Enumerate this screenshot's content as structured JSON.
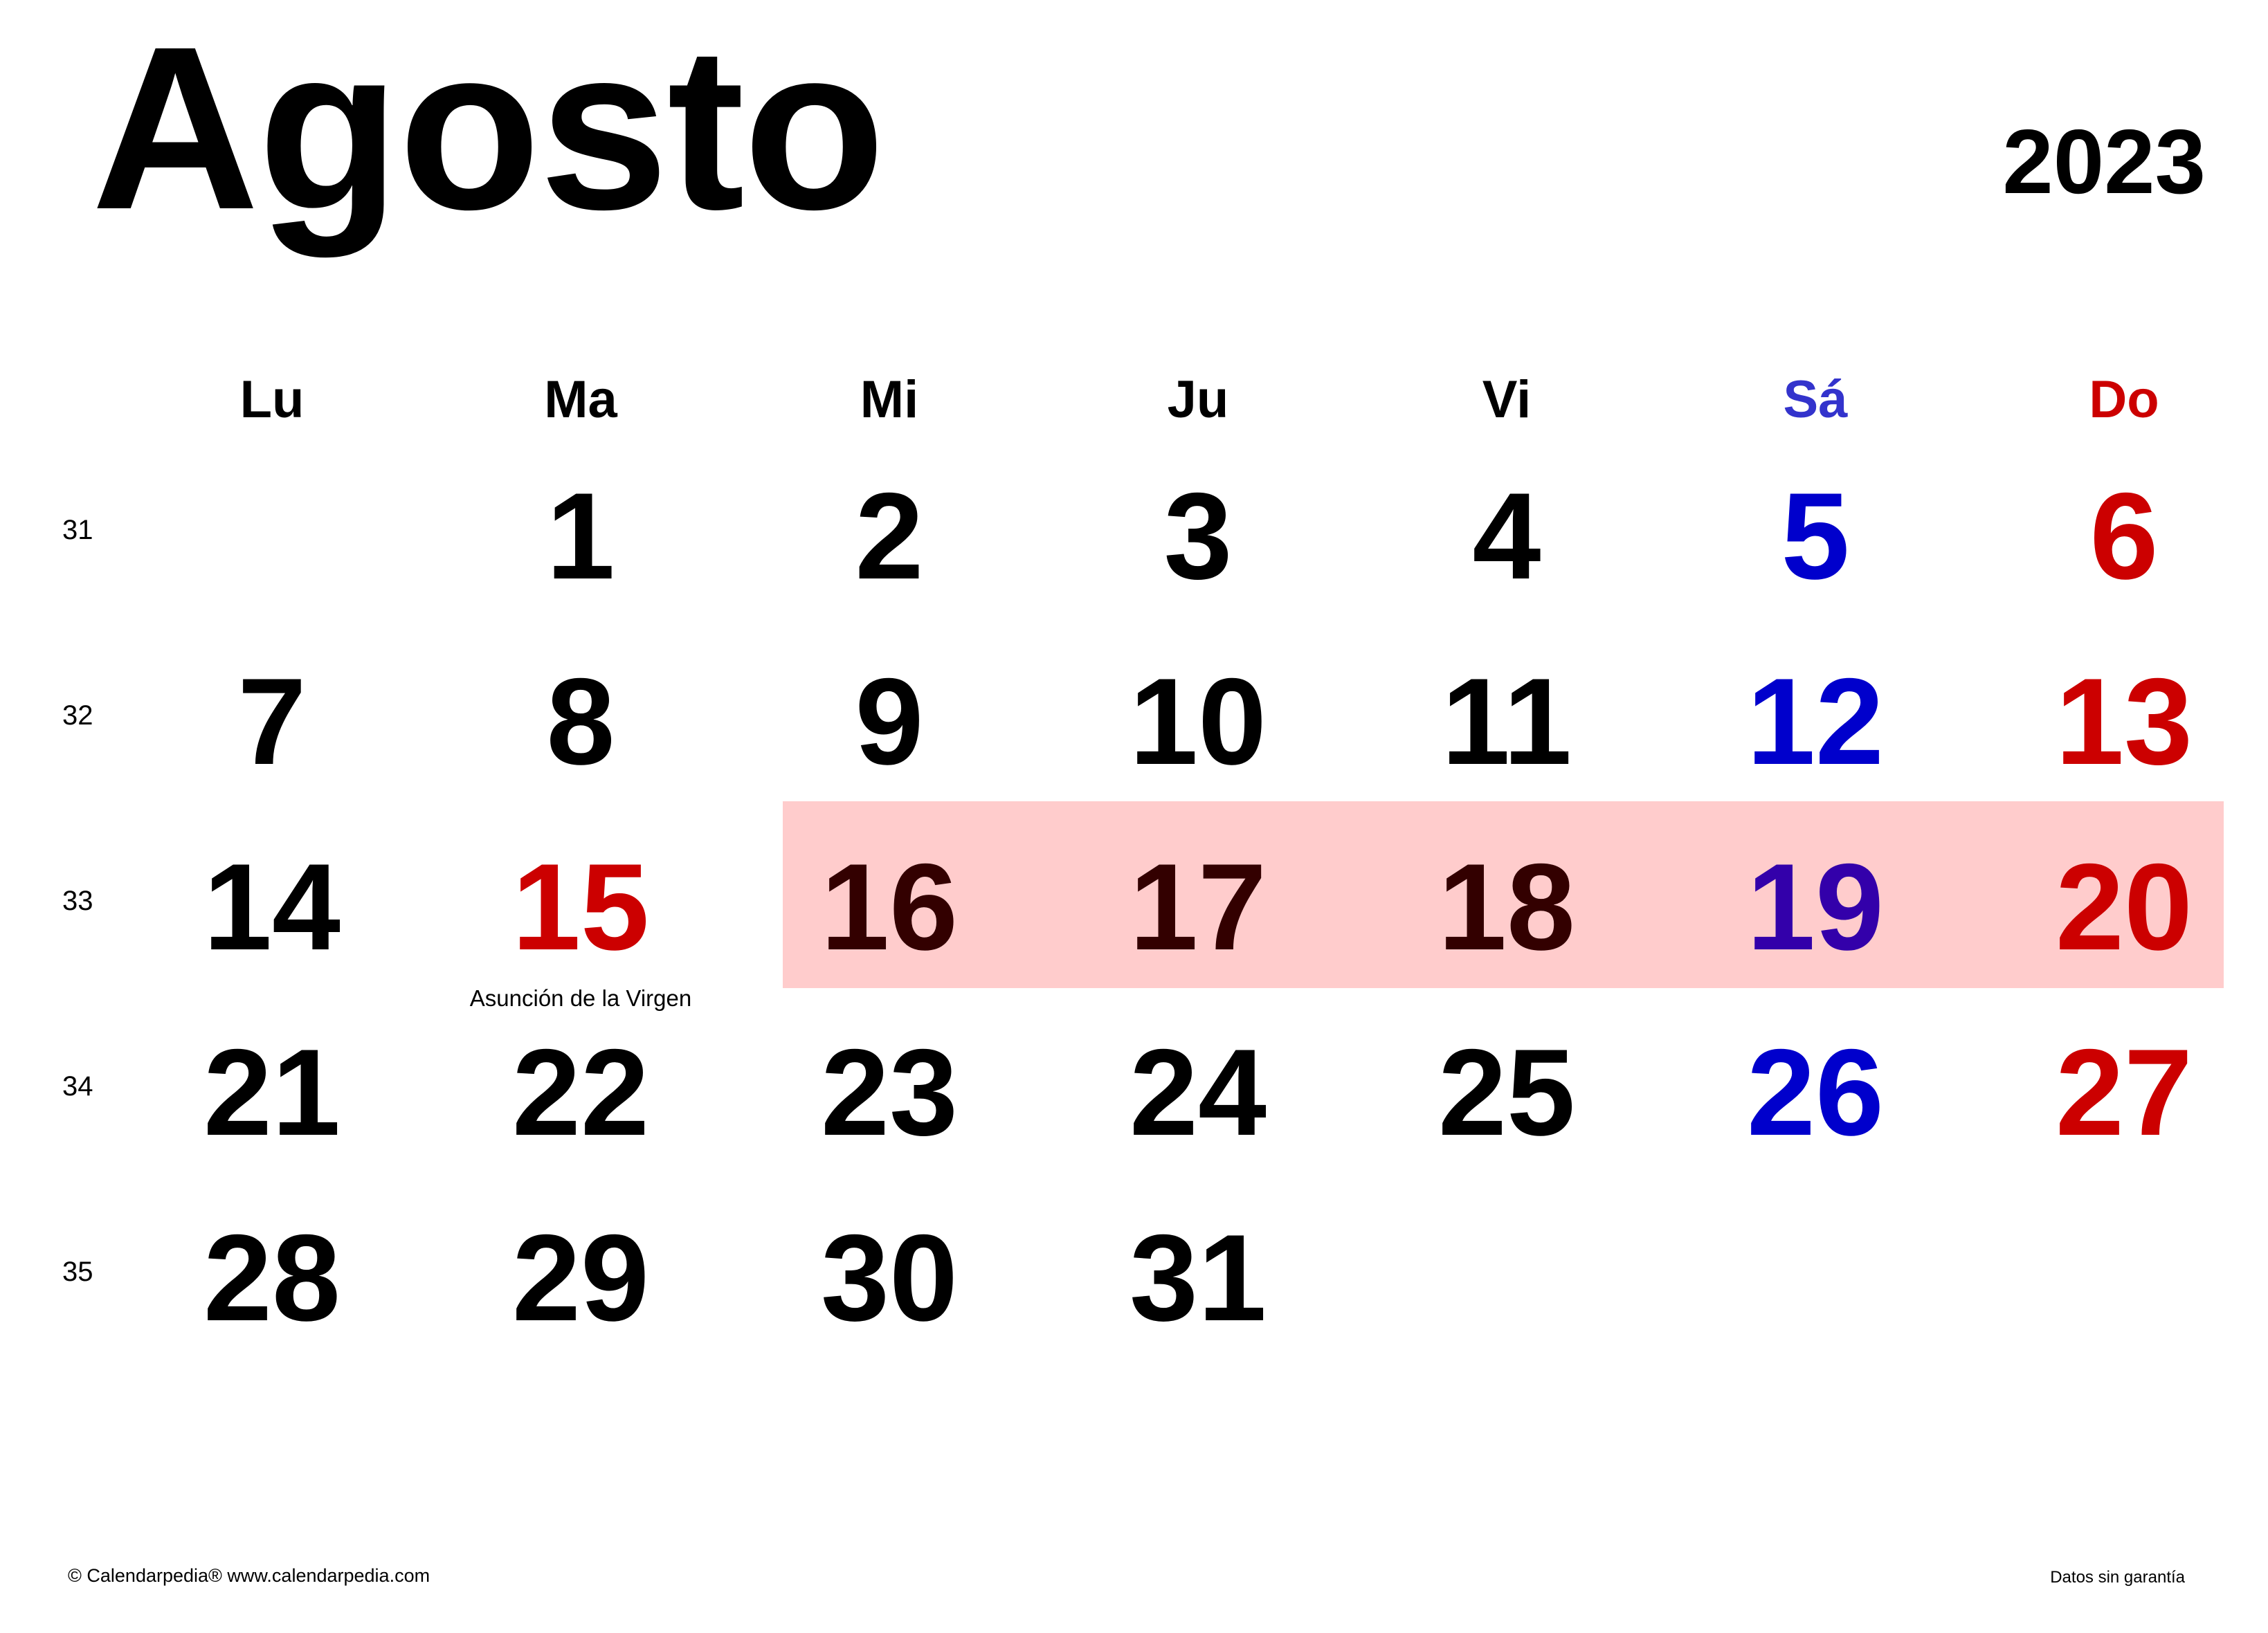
{
  "calendar": {
    "month": "Agosto",
    "year": "2023",
    "weekdays": [
      {
        "label": "Lu",
        "color": "#000000"
      },
      {
        "label": "Ma",
        "color": "#000000"
      },
      {
        "label": "Mi",
        "color": "#000000"
      },
      {
        "label": "Ju",
        "color": "#000000"
      },
      {
        "label": "Vi",
        "color": "#000000"
      },
      {
        "label": "Sá",
        "color": "#3333cc"
      },
      {
        "label": "Do",
        "color": "#cc0000"
      }
    ],
    "weeks": [
      {
        "number": "31",
        "days": [
          {
            "day": "",
            "color": "#000000"
          },
          {
            "day": "1",
            "color": "#000000"
          },
          {
            "day": "2",
            "color": "#000000"
          },
          {
            "day": "3",
            "color": "#000000"
          },
          {
            "day": "4",
            "color": "#000000"
          },
          {
            "day": "5",
            "color": "#0000cc"
          },
          {
            "day": "6",
            "color": "#cc0000"
          }
        ]
      },
      {
        "number": "32",
        "days": [
          {
            "day": "7",
            "color": "#000000"
          },
          {
            "day": "8",
            "color": "#000000"
          },
          {
            "day": "9",
            "color": "#000000"
          },
          {
            "day": "10",
            "color": "#000000"
          },
          {
            "day": "11",
            "color": "#000000"
          },
          {
            "day": "12",
            "color": "#0000cc"
          },
          {
            "day": "13",
            "color": "#cc0000"
          }
        ]
      },
      {
        "number": "33",
        "days": [
          {
            "day": "14",
            "color": "#000000"
          },
          {
            "day": "15",
            "color": "#cc0000",
            "note": "Asunción de la Virgen"
          },
          {
            "day": "16",
            "color": "#330000"
          },
          {
            "day": "17",
            "color": "#330000"
          },
          {
            "day": "18",
            "color": "#330000"
          },
          {
            "day": "19",
            "color": "#3300aa"
          },
          {
            "day": "20",
            "color": "#cc0000"
          }
        ]
      },
      {
        "number": "34",
        "days": [
          {
            "day": "21",
            "color": "#000000"
          },
          {
            "day": "22",
            "color": "#000000"
          },
          {
            "day": "23",
            "color": "#000000"
          },
          {
            "day": "24",
            "color": "#000000"
          },
          {
            "day": "25",
            "color": "#000000"
          },
          {
            "day": "26",
            "color": "#0000cc"
          },
          {
            "day": "27",
            "color": "#cc0000"
          }
        ]
      },
      {
        "number": "35",
        "days": [
          {
            "day": "28",
            "color": "#000000"
          },
          {
            "day": "29",
            "color": "#000000"
          },
          {
            "day": "30",
            "color": "#000000"
          },
          {
            "day": "31",
            "color": "#000000"
          },
          {
            "day": "",
            "color": "#000000"
          },
          {
            "day": "",
            "color": "#000000"
          },
          {
            "day": "",
            "color": "#000000"
          }
        ]
      }
    ],
    "highlight_color": "#ffcccc"
  },
  "footer": {
    "copyright": "© Calendarpedia®   www.calendarpedia.com",
    "disclaimer": "Datos sin garantía"
  }
}
